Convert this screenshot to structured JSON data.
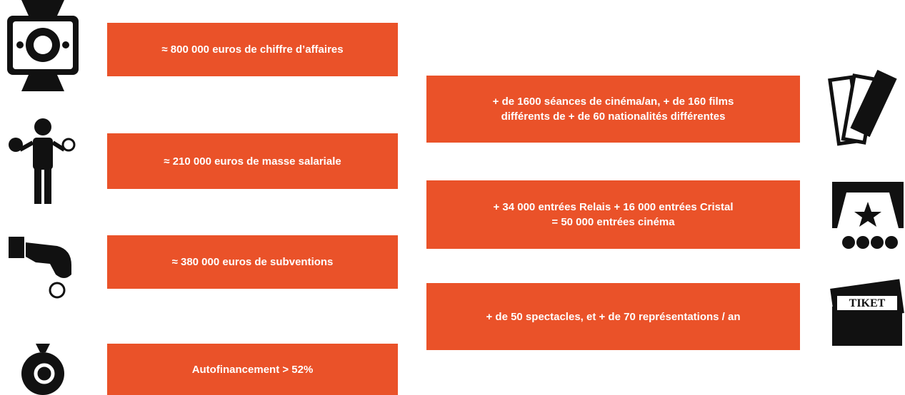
{
  "left_items": [
    "≈ 800 000 euros de chiffre d’affaires",
    "≈ 210 000 euros de masse salariale",
    "≈ 380 000 euros de subventions",
    "Autofinancement > 52%"
  ],
  "right_items": [
    {
      "lines": [
        "+ de 1600 séances de cinéma/an, + de 160 films",
        "différents de + de 60 nationalités différentes"
      ]
    },
    {
      "lines": [
        "+ 34 000 entrées Relais + 16 000 entrées Cristal",
        "= 50 000 entrées cinéma"
      ]
    },
    {
      "lines": [
        "+ de 50 spectacles, et + de 70 représentations / an"
      ]
    }
  ],
  "ticket_icon_label": "TIKET"
}
